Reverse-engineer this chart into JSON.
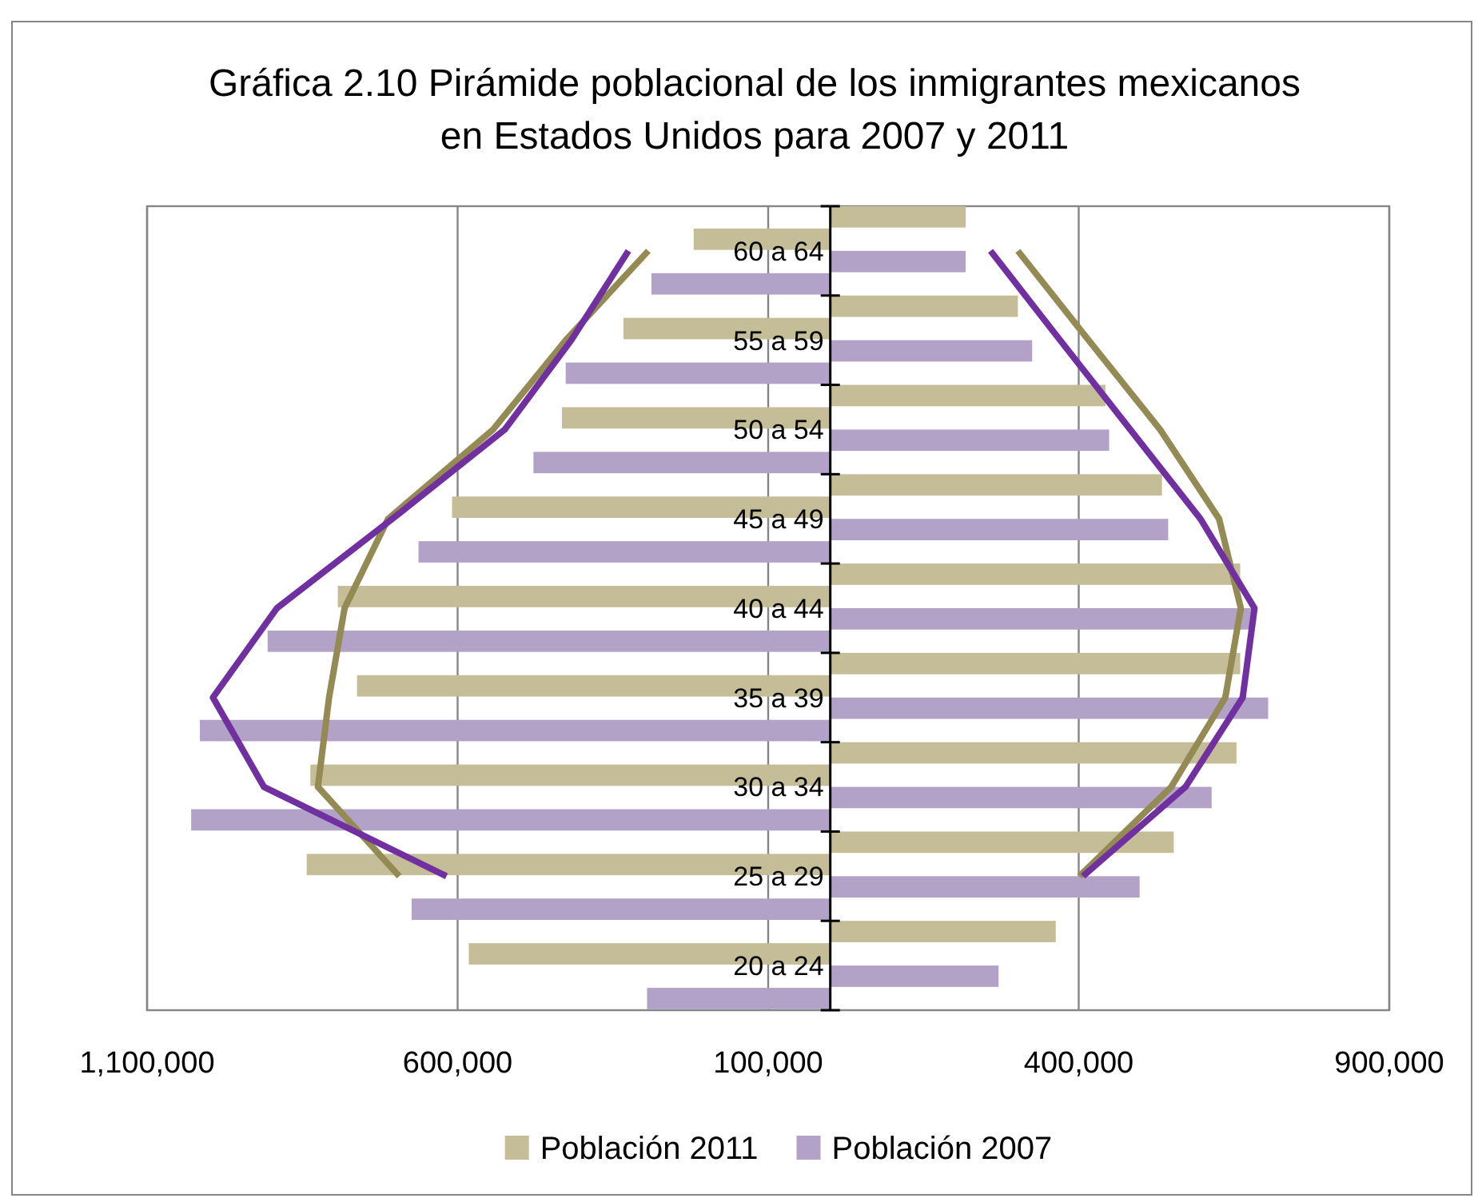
{
  "chart_data": {
    "type": "bar",
    "orientation": "horizontal",
    "title": "Gráfica 2.10 Pirámide poblacional de los inmigrantes mexicanos en Estados Unidos para 2007 y 2011",
    "categories": [
      "60 a 64",
      "55 a 59",
      "50 a 54",
      "45 a 49",
      "40 a 44",
      "35 a 39",
      "30 a 34",
      "25 a 29",
      "20 a 24"
    ],
    "series": [
      {
        "name": "Población 2011",
        "color": "#c4bd97",
        "values": [
          218000,
          302000,
          443000,
          534000,
          660000,
          660000,
          654000,
          553000,
          363000
        ]
      },
      {
        "color": "#c4bd97",
        "values": [
          -220000,
          -333000,
          -432000,
          -609000,
          -793000,
          -762000,
          -837000,
          -843000,
          -582000
        ]
      },
      {
        "name": "Población 2007",
        "color": "#b3a2c7",
        "values": [
          218000,
          325000,
          449000,
          544000,
          681000,
          705000,
          614000,
          498000,
          271000
        ]
      },
      {
        "color": "#b3a2c7",
        "values": [
          -288000,
          -426000,
          -478000,
          -663000,
          -906000,
          -1015000,
          -1029000,
          -674000,
          -295000
        ]
      },
      {
        "type": "line",
        "color": "#948a54",
        "values": [
          302000,
          416000,
          531000,
          626000,
          661000,
          636000,
          549000,
          401000,
          null
        ]
      },
      {
        "type": "line",
        "color": "#948a54",
        "values": [
          -293000,
          -426000,
          -543000,
          -712000,
          -782000,
          -807000,
          -825000,
          -694000,
          null
        ]
      },
      {
        "type": "line",
        "color": "#7030a0",
        "values": [
          258000,
          370000,
          483000,
          596000,
          683000,
          664000,
          572000,
          407000,
          null
        ]
      },
      {
        "type": "line",
        "color": "#7030a0",
        "values": [
          -325000,
          -417000,
          -524000,
          -705000,
          -891000,
          -994000,
          -912000,
          -618000,
          null
        ]
      }
    ],
    "xlim": [
      -1100000,
      900000
    ],
    "xticks": [
      {
        "value": -1100000,
        "label": "1,100,000"
      },
      {
        "value": -600000,
        "label": "600,000"
      },
      {
        "value": -100000,
        "label": "100,000"
      },
      {
        "value": 400000,
        "label": "400,000"
      },
      {
        "value": 900000,
        "label": "900,000"
      }
    ],
    "grid": "x",
    "legend": "bottom"
  }
}
